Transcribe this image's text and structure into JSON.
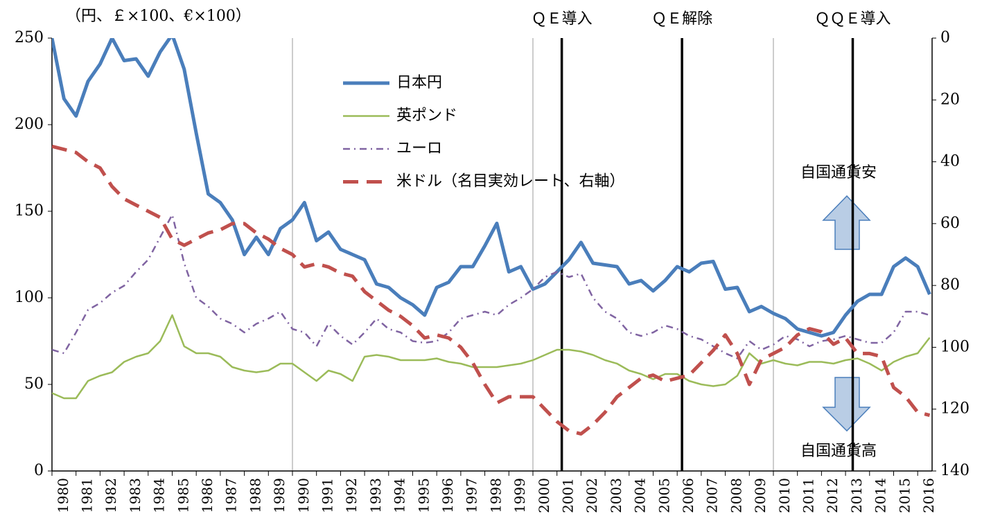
{
  "chart_data": {
    "type": "line",
    "unit_label": "（円、￡×100、€×100）",
    "x": [
      1980,
      1980.5,
      1981,
      1981.5,
      1982,
      1982.5,
      1983,
      1983.5,
      1984,
      1984.5,
      1985,
      1985.5,
      1986,
      1986.5,
      1987,
      1987.5,
      1988,
      1988.5,
      1989,
      1989.5,
      1990,
      1990.5,
      1991,
      1991.5,
      1992,
      1992.5,
      1993,
      1993.5,
      1994,
      1994.5,
      1995,
      1995.5,
      1996,
      1996.5,
      1997,
      1997.5,
      1998,
      1998.5,
      1999,
      1999.5,
      2000,
      2000.5,
      2001,
      2001.5,
      2002,
      2002.5,
      2003,
      2003.5,
      2004,
      2004.5,
      2005,
      2005.5,
      2006,
      2006.5,
      2007,
      2007.5,
      2008,
      2008.5,
      2009,
      2009.5,
      2010,
      2010.5,
      2011,
      2011.5,
      2012,
      2012.5,
      2013,
      2013.5,
      2014,
      2014.5,
      2015,
      2015.5,
      2016,
      2016.5
    ],
    "series": [
      {
        "name": "日本円",
        "color": "#4a7ebb",
        "style": "solid",
        "width": 5,
        "values": [
          250,
          215,
          205,
          225,
          235,
          250,
          237,
          238,
          228,
          242,
          252,
          232,
          195,
          160,
          155,
          145,
          125,
          135,
          125,
          140,
          145,
          155,
          133,
          138,
          128,
          125,
          122,
          108,
          106,
          100,
          96,
          90,
          106,
          109,
          118,
          118,
          130,
          143,
          115,
          118,
          105,
          108,
          115,
          122,
          132,
          120,
          119,
          118,
          108,
          110,
          104,
          110,
          118,
          115,
          120,
          121,
          105,
          106,
          92,
          95,
          91,
          88,
          82,
          80,
          78,
          80,
          90,
          98,
          102,
          102,
          118,
          123,
          118,
          102
        ]
      },
      {
        "name": "英ポンド",
        "color": "#9bbb59",
        "style": "solid",
        "width": 2.5,
        "values": [
          45,
          42,
          42,
          52,
          55,
          57,
          63,
          66,
          68,
          75,
          90,
          72,
          68,
          68,
          66,
          60,
          58,
          57,
          58,
          62,
          62,
          57,
          52,
          58,
          56,
          52,
          66,
          67,
          66,
          64,
          64,
          64,
          65,
          63,
          62,
          60,
          60,
          60,
          61,
          62,
          64,
          67,
          70,
          70,
          69,
          67,
          64,
          62,
          58,
          56,
          53,
          56,
          56,
          52,
          50,
          49,
          50,
          55,
          68,
          62,
          64,
          62,
          61,
          63,
          63,
          62,
          64,
          65,
          62,
          58,
          63,
          66,
          68,
          77
        ]
      },
      {
        "name": "ユーロ",
        "color": "#8064a2",
        "style": "dashdot",
        "width": 2.5,
        "values": [
          70,
          68,
          80,
          93,
          97,
          103,
          107,
          115,
          122,
          135,
          148,
          120,
          100,
          95,
          88,
          85,
          80,
          85,
          88,
          92,
          82,
          80,
          72,
          85,
          78,
          73,
          80,
          88,
          82,
          80,
          75,
          74,
          75,
          80,
          88,
          90,
          92,
          90,
          96,
          100,
          105,
          112,
          115,
          112,
          114,
          100,
          92,
          88,
          80,
          78,
          80,
          84,
          82,
          78,
          76,
          72,
          68,
          65,
          75,
          70,
          73,
          78,
          76,
          72,
          75,
          76,
          78,
          76,
          74,
          74,
          80,
          92,
          92,
          90
        ]
      },
      {
        "name": "米ドル（名目実効レート、右軸）",
        "color": "#c0504d",
        "style": "dash",
        "width": 5,
        "axis": "y2",
        "values": [
          35,
          36,
          37,
          40,
          42,
          48,
          52,
          54,
          56,
          58,
          65,
          67,
          65,
          63,
          62,
          60,
          60,
          63,
          65,
          68,
          70,
          74,
          73,
          74,
          76,
          77,
          82,
          85,
          88,
          90,
          93,
          97,
          96,
          97,
          100,
          105,
          112,
          118,
          116,
          116,
          116,
          120,
          124,
          127,
          128,
          125,
          121,
          116,
          113,
          110,
          109,
          111,
          110,
          109,
          105,
          101,
          96,
          102,
          112,
          104,
          102,
          100,
          96,
          94,
          95,
          99,
          97,
          102,
          102,
          103,
          113,
          116,
          121,
          122
        ]
      }
    ],
    "xlim": [
      1980,
      2016.6
    ],
    "xticks": [
      1980,
      1981,
      1982,
      1983,
      1984,
      1985,
      1986,
      1987,
      1988,
      1989,
      1990,
      1991,
      1992,
      1993,
      1994,
      1995,
      1996,
      1997,
      1998,
      1999,
      2000,
      2001,
      2002,
      2003,
      2004,
      2005,
      2006,
      2007,
      2008,
      2009,
      2010,
      2011,
      2012,
      2013,
      2014,
      2015,
      2016
    ],
    "xgrid": [
      1990,
      2000,
      2010
    ],
    "ylim": [
      0,
      250
    ],
    "yticks": [
      0,
      50,
      100,
      150,
      200,
      250
    ],
    "y2lim": [
      140,
      0
    ],
    "y2ticks": [
      0,
      20,
      40,
      60,
      80,
      100,
      120,
      140
    ],
    "annotations": [
      {
        "text": "ＱＥ導入",
        "x": 2001.2
      },
      {
        "text": "ＱＥ解除",
        "x": 2006.2
      },
      {
        "text": "ＱＱＥ導入",
        "x": 2013.3
      }
    ],
    "notes": [
      "自国通貨安",
      "自国通貨高"
    ]
  }
}
